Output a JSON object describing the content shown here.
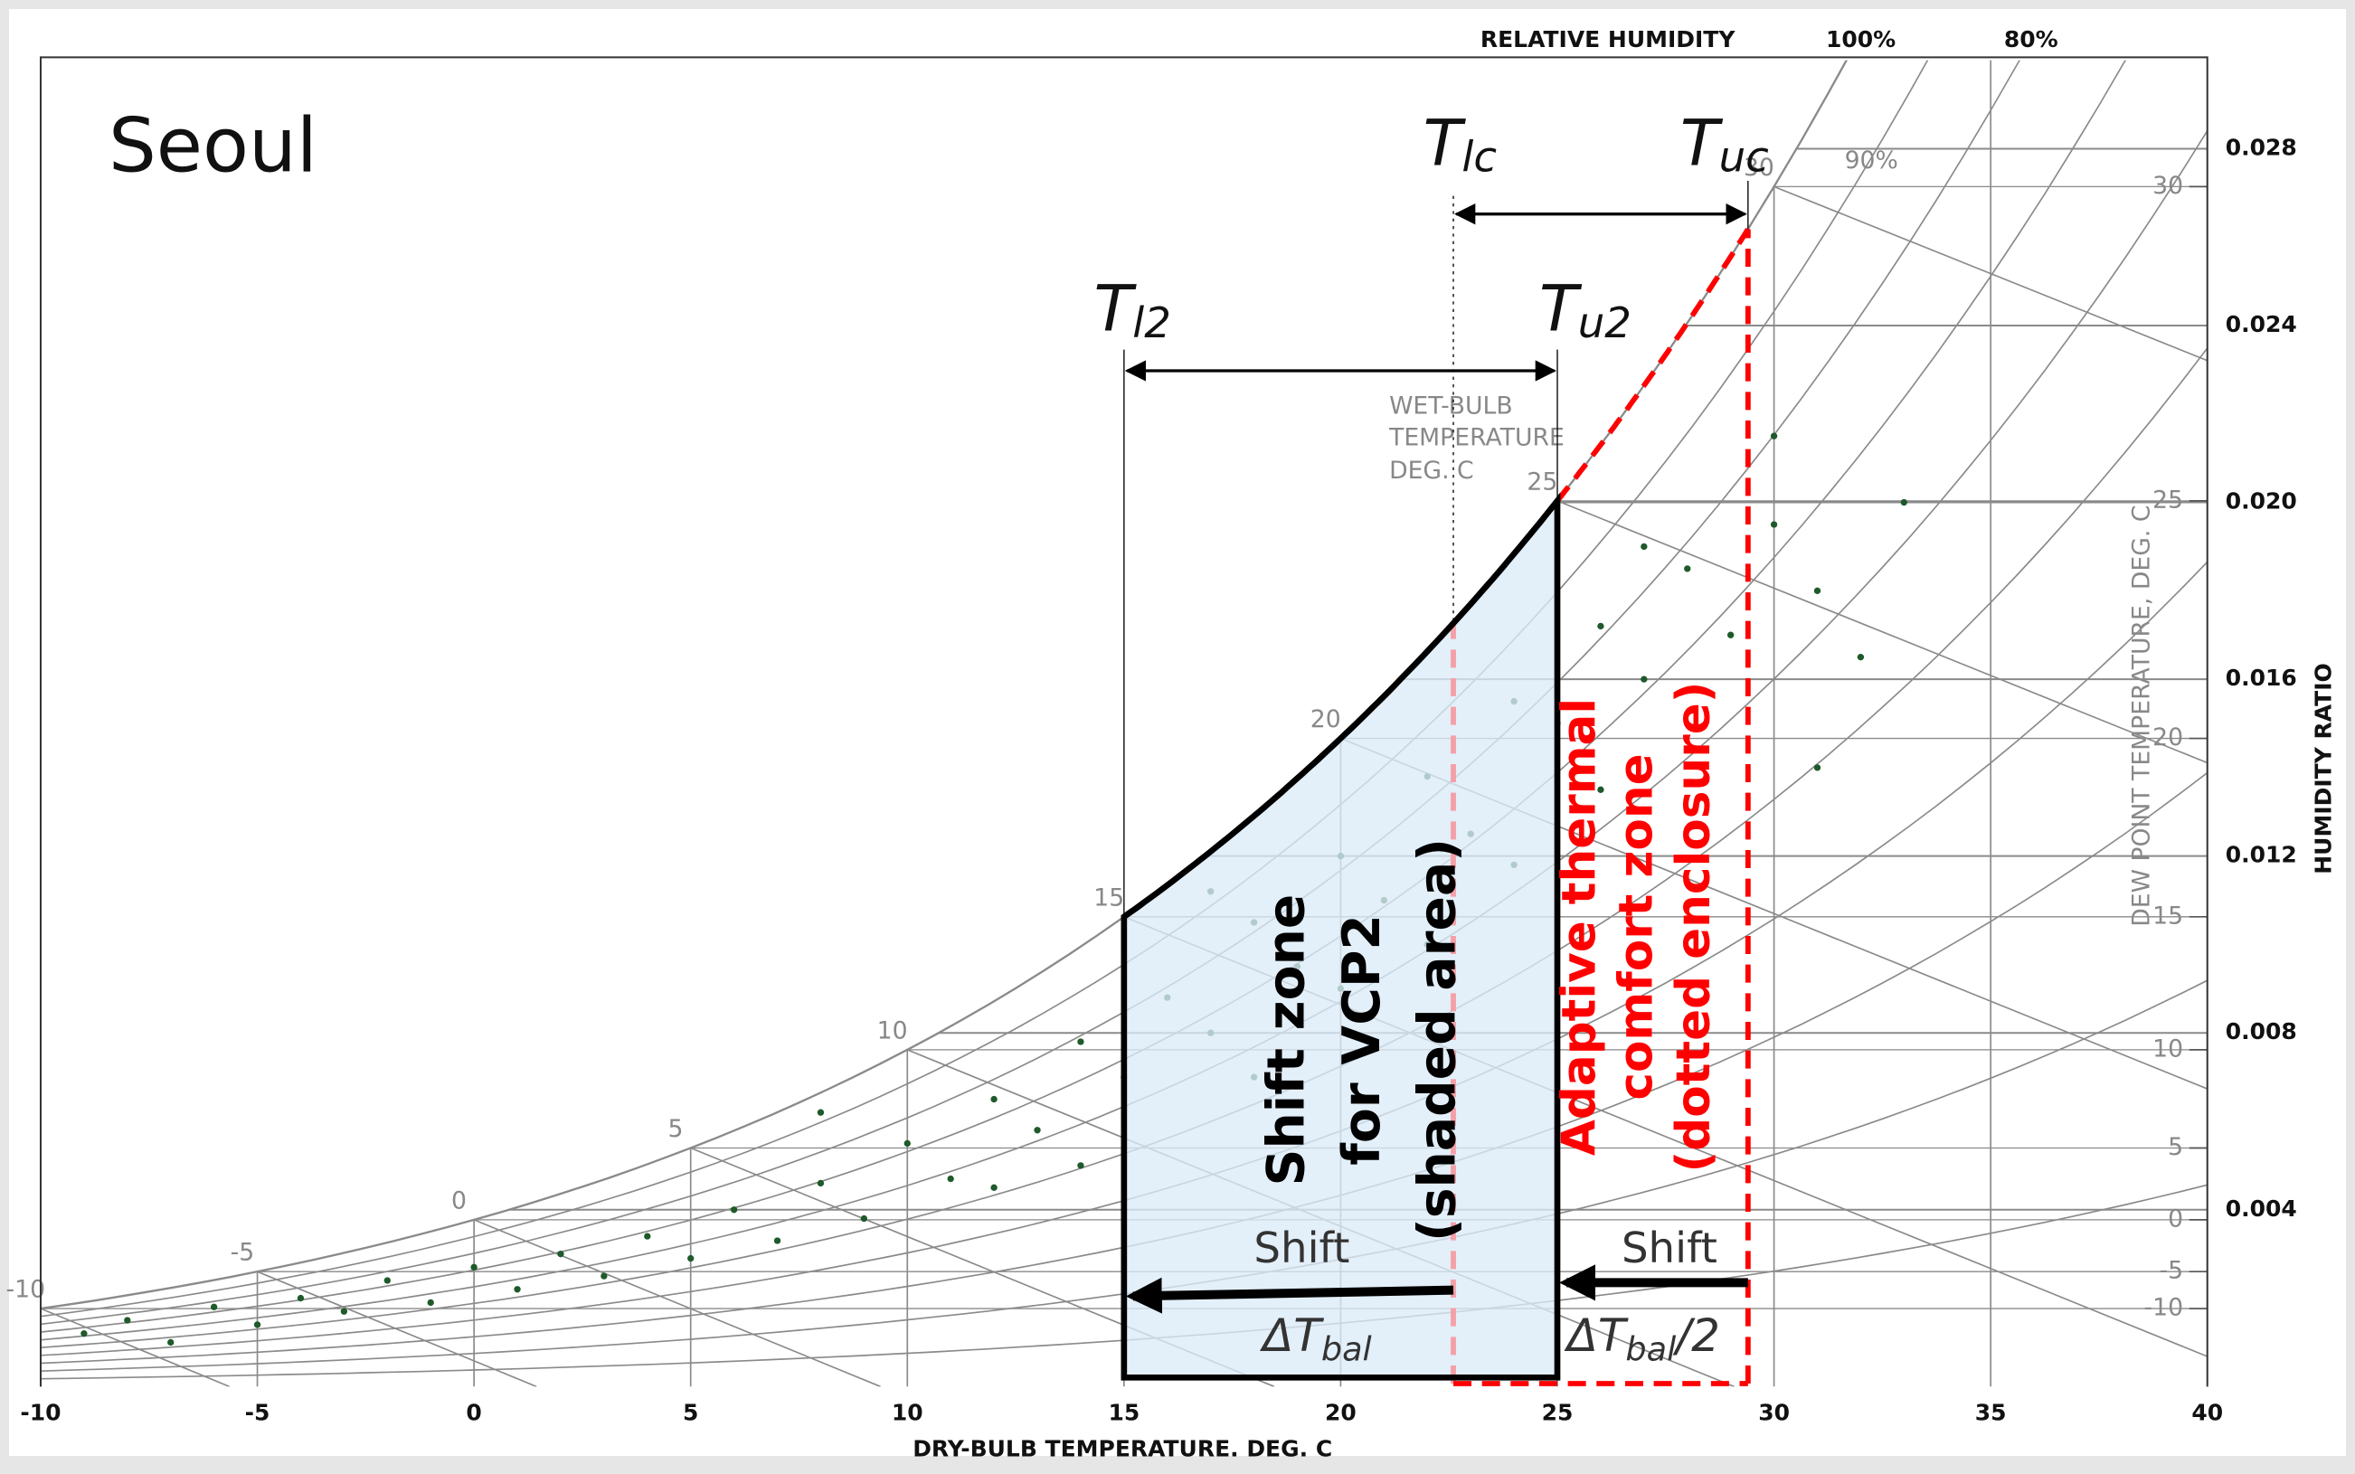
{
  "chart_data": {
    "type": "psychrometric",
    "title": "Seoul",
    "x_label": "DRY-BULB TEMPERATURE. DEG. C",
    "y_label": "HUMIDITY RATIO",
    "y2_label": "DEW POINT TEMPERATURE, DEG. C",
    "rh_title": "RELATIVE HUMIDITY",
    "wet_bulb_title": [
      "WET-BULB",
      "TEMPERATURE",
      "DEG. C"
    ],
    "xlim": [
      -10,
      40
    ],
    "xticks": [
      -10,
      -5,
      0,
      5,
      10,
      15,
      20,
      25,
      30,
      35,
      40
    ],
    "ylim": [
      0,
      0.03
    ],
    "yticks": [
      0.004,
      0.008,
      0.012,
      0.016,
      {
        "value": 0.02,
        "label": "0.020"
      },
      0.024,
      0.028
    ],
    "dew_point_ticks": [
      -10,
      -5,
      0,
      5,
      10,
      15,
      20,
      25,
      30
    ],
    "wet_bulb_lines": [
      -10,
      -5,
      0,
      5,
      10,
      15,
      20,
      25,
      30
    ],
    "rh_curves": [
      10,
      20,
      30,
      40,
      50,
      60,
      70,
      80,
      90,
      100
    ],
    "rh_labels": [
      {
        "value": 100,
        "label": "100%"
      },
      {
        "value": 90,
        "label": "90%"
      },
      {
        "value": 80,
        "label": "80%"
      }
    ],
    "grid_color": "#8a8a8a",
    "points": {
      "color": "#1e5a2a",
      "x": [
        -9,
        -8,
        -7,
        -6,
        -5,
        -4,
        -3,
        -2,
        -1,
        0,
        1,
        2,
        3,
        4,
        5,
        6,
        7,
        8,
        9,
        10,
        11,
        12,
        13,
        14,
        15,
        16,
        17,
        18,
        19,
        20,
        21,
        22,
        23,
        24,
        25,
        26,
        27,
        28,
        29,
        30,
        31,
        32,
        33,
        8,
        12,
        18,
        22,
        26,
        30,
        31,
        20,
        24,
        14,
        17,
        27
      ],
      "y": [
        0.0012,
        0.0015,
        0.001,
        0.0018,
        0.0014,
        0.002,
        0.0017,
        0.0024,
        0.0019,
        0.0027,
        0.0022,
        0.003,
        0.0025,
        0.0034,
        0.0029,
        0.004,
        0.0033,
        0.0046,
        0.0038,
        0.0055,
        0.0047,
        0.0065,
        0.0058,
        0.0078,
        0.007,
        0.0088,
        0.008,
        0.0105,
        0.0095,
        0.012,
        0.011,
        0.0138,
        0.0125,
        0.0155,
        0.015,
        0.0172,
        0.016,
        0.0185,
        0.017,
        0.0195,
        0.018,
        0.0165,
        0.02,
        0.0062,
        0.0045,
        0.007,
        0.01,
        0.0135,
        0.0215,
        0.014,
        0.009,
        0.0118,
        0.005,
        0.0112,
        0.019
      ]
    },
    "shift_zone": {
      "T_l2": 15,
      "T_u2": 25,
      "fill": "#dbeaf7",
      "color": "#000000",
      "label": [
        "Shift zone",
        "for VCP2",
        "(shaded area)"
      ]
    },
    "comfort_zone": {
      "T_lc": 22.6,
      "T_uc": 29.4,
      "color": "#ff0000",
      "light_color": "#f4a0a8",
      "label": [
        "Adaptive thermal",
        "comfort zone",
        "(dotted enclosure)"
      ]
    },
    "limit_labels": {
      "T_l2": {
        "main": "T",
        "sub": "l2"
      },
      "T_u2": {
        "main": "T",
        "sub": "u2"
      },
      "T_lc": {
        "main": "T",
        "sub": "lc"
      },
      "T_uc": {
        "main": "T",
        "sub": "uc"
      }
    },
    "shift_labels": [
      {
        "text": "Shift",
        "delta": "ΔT",
        "sub": "bal"
      },
      {
        "text": "Shift",
        "delta": "ΔT",
        "sub": "bal",
        "suffix": "/2"
      }
    ]
  }
}
